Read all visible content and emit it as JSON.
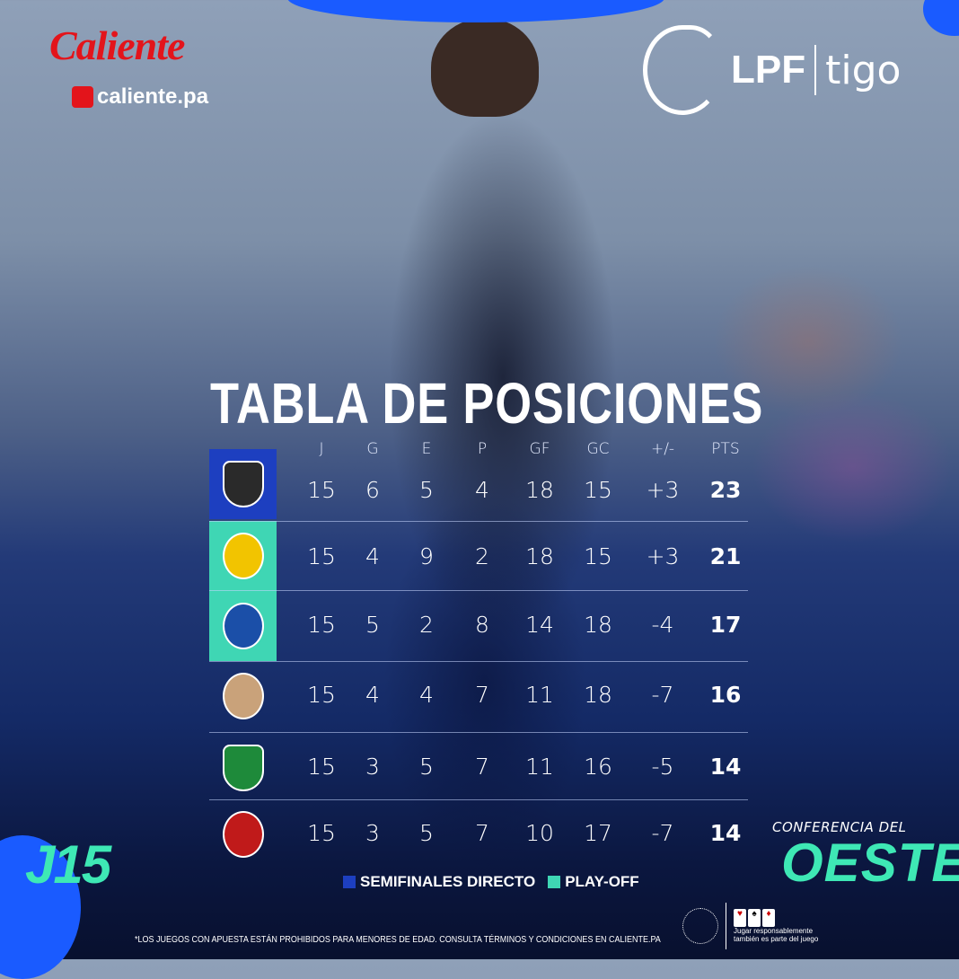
{
  "sponsor": {
    "brand": "Caliente",
    "site": "caliente.pa"
  },
  "league": {
    "name": "LPF",
    "partner": "tigo"
  },
  "title": "TABLA DE POSICIONES",
  "columns": [
    "J",
    "G",
    "E",
    "P",
    "GF",
    "GC",
    "+/-",
    "PTS"
  ],
  "rows": [
    {
      "team_logo": "CAI",
      "zone": "semifinales",
      "values": [
        "15",
        "6",
        "5",
        "4",
        "18",
        "15",
        "+3",
        "23"
      ]
    },
    {
      "team_logo": "HFC",
      "zone": "playoff",
      "values": [
        "15",
        "4",
        "9",
        "2",
        "18",
        "15",
        "+3",
        "21"
      ]
    },
    {
      "team_logo": "UNIVERSITARIO",
      "zone": "playoff",
      "values": [
        "15",
        "5",
        "2",
        "8",
        "14",
        "18",
        "-4",
        "17"
      ]
    },
    {
      "team_logo": "VERAGUAS",
      "zone": "",
      "values": [
        "15",
        "4",
        "4",
        "7",
        "11",
        "18",
        "-7",
        "16"
      ]
    },
    {
      "team_logo": "CH",
      "zone": "",
      "values": [
        "15",
        "3",
        "5",
        "7",
        "11",
        "16",
        "-5",
        "14"
      ]
    },
    {
      "team_logo": "SFFC",
      "zone": "",
      "values": [
        "15",
        "3",
        "5",
        "7",
        "10",
        "17",
        "-7",
        "14"
      ]
    }
  ],
  "colors": {
    "semifinales": "#1d3fc0",
    "playoff": "#3fd6b4",
    "accent": "#3ee8b5",
    "caliente_red": "#e3141b"
  },
  "matchday": "J15",
  "conference": {
    "label": "CONFERENCIA DEL",
    "name": "OESTE"
  },
  "legend": [
    {
      "label": "SEMIFINALES DIRECTO",
      "color": "#1d3fc0"
    },
    {
      "label": "PLAY-OFF",
      "color": "#3fd6b4"
    }
  ],
  "disclaimer": "*LOS JUEGOS CON APUESTA ESTÁN PROHIBIDOS PARA MENORES DE EDAD. CONSULTA TÉRMINOS Y CONDICIONES EN CALIENTE.PA",
  "responsible": {
    "line1": "Jugar responsablemente",
    "line2": "también es parte del juego"
  }
}
